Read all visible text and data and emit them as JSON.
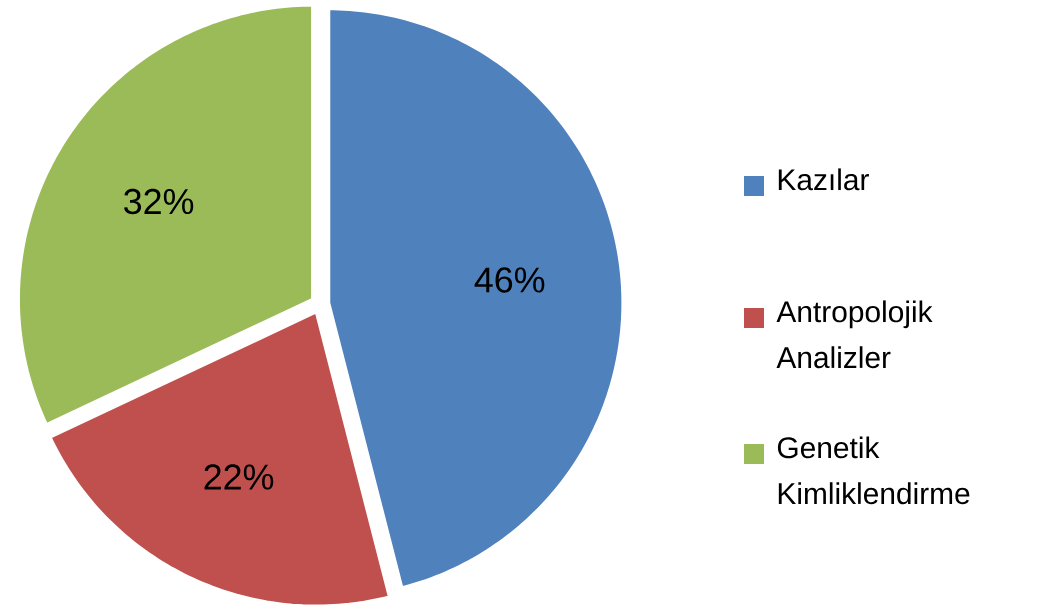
{
  "chart_data": {
    "type": "pie",
    "categories": [
      "Kazılar",
      "Antropolojik Analizler",
      "Genetik Kimliklendirme"
    ],
    "values": [
      46,
      22,
      32
    ],
    "colors": [
      "#4f81bd",
      "#c0504d",
      "#9bbb59"
    ],
    "value_labels": [
      "46%",
      "22%",
      "32%"
    ],
    "legend": "right"
  }
}
